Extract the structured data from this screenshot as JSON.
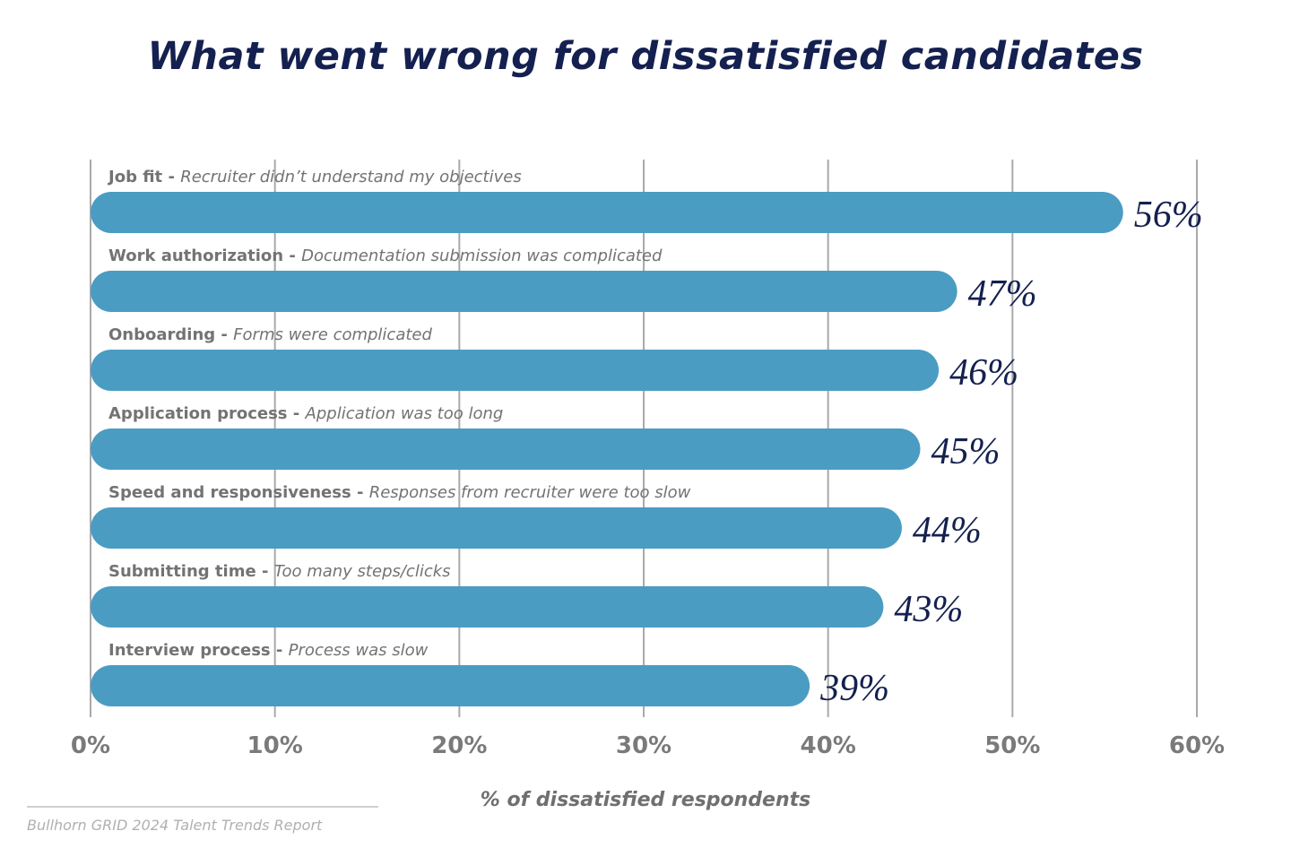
{
  "chart_data": {
    "type": "bar",
    "orientation": "horizontal",
    "title": "What went wrong for dissatisfied candidates",
    "xlabel": "% of dissatisfied respondents",
    "ylabel": "",
    "xlim": [
      0,
      60
    ],
    "x_ticks": [
      "0%",
      "10%",
      "20%",
      "30%",
      "40%",
      "50%",
      "60%"
    ],
    "grid": "vertical",
    "categories": [
      {
        "name": "Job fit",
        "description": "Recruiter didn’t understand my objectives"
      },
      {
        "name": "Work authorization",
        "description": "Documentation submission was complicated"
      },
      {
        "name": "Onboarding",
        "description": "Forms were complicated"
      },
      {
        "name": "Application process",
        "description": "Application was too long"
      },
      {
        "name": "Speed and responsiveness",
        "description": "Responses from recruiter were too slow"
      },
      {
        "name": "Submitting time",
        "description": "Too many steps/clicks"
      },
      {
        "name": "Interview process",
        "description": "Process was slow"
      }
    ],
    "values": [
      56,
      47,
      46,
      45,
      44,
      43,
      39
    ],
    "value_labels": [
      "56%",
      "47%",
      "46%",
      "45%",
      "44%",
      "43%",
      "39%"
    ],
    "source": "Bullhorn GRID 2024 Talent Trends Report"
  },
  "colors": {
    "bar": "#4a9cc3",
    "title": "#14204f",
    "value_label": "#14204f",
    "category_text": "#737373",
    "grid": "#a9a9a9",
    "tick_text": "#7a7a7a",
    "source_text": "#b0b0b0"
  }
}
